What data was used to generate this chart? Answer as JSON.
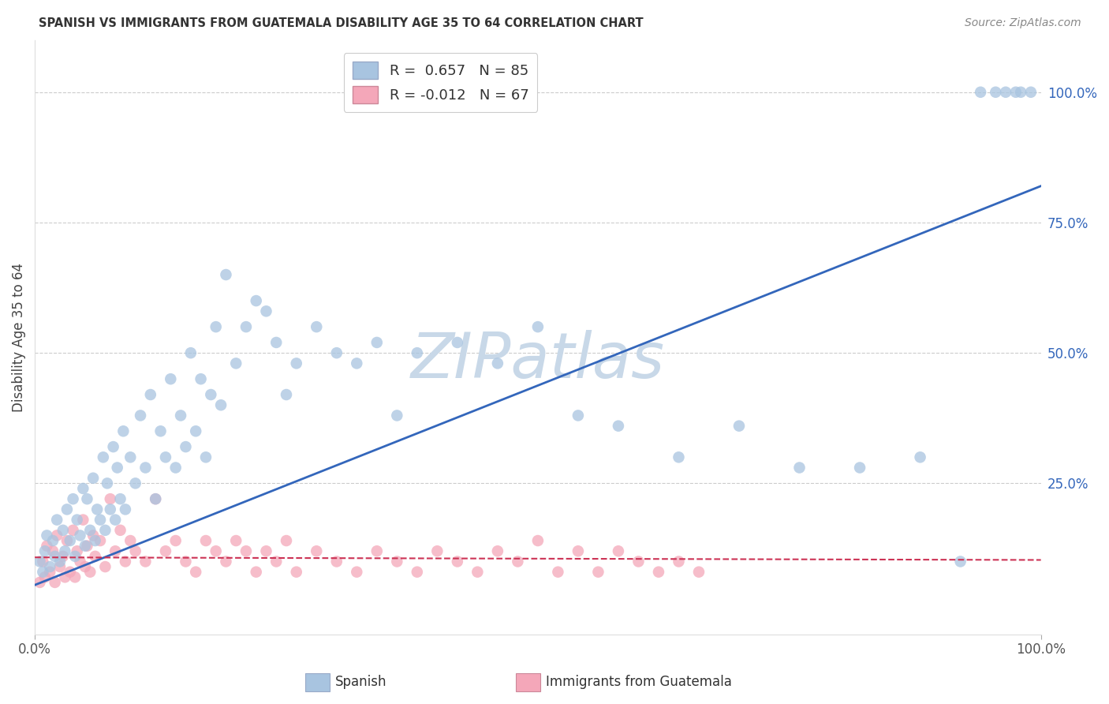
{
  "title": "SPANISH VS IMMIGRANTS FROM GUATEMALA DISABILITY AGE 35 TO 64 CORRELATION CHART",
  "source": "Source: ZipAtlas.com",
  "ylabel": "Disability Age 35 to 64",
  "xlim": [
    0,
    1.0
  ],
  "ylim": [
    -0.04,
    1.1
  ],
  "xtick_labels": [
    "0.0%",
    "100.0%"
  ],
  "ytick_labels": [
    "100.0%",
    "75.0%",
    "50.0%",
    "25.0%"
  ],
  "ytick_positions": [
    1.0,
    0.75,
    0.5,
    0.25
  ],
  "legend1_r": "0.657",
  "legend1_n": "85",
  "legend2_r": "-0.012",
  "legend2_n": "67",
  "blue_color": "#a8c4e0",
  "pink_color": "#f4a7b9",
  "line_blue": "#3366bb",
  "line_pink": "#cc3355",
  "watermark_color": "#c8d8e8",
  "blue_scatter_x": [
    0.005,
    0.008,
    0.01,
    0.012,
    0.015,
    0.018,
    0.02,
    0.022,
    0.025,
    0.028,
    0.03,
    0.032,
    0.035,
    0.038,
    0.04,
    0.042,
    0.045,
    0.048,
    0.05,
    0.052,
    0.055,
    0.058,
    0.06,
    0.062,
    0.065,
    0.068,
    0.07,
    0.072,
    0.075,
    0.078,
    0.08,
    0.082,
    0.085,
    0.088,
    0.09,
    0.095,
    0.1,
    0.105,
    0.11,
    0.115,
    0.12,
    0.125,
    0.13,
    0.135,
    0.14,
    0.145,
    0.15,
    0.155,
    0.16,
    0.165,
    0.17,
    0.175,
    0.18,
    0.185,
    0.19,
    0.2,
    0.21,
    0.22,
    0.23,
    0.24,
    0.25,
    0.26,
    0.28,
    0.3,
    0.32,
    0.34,
    0.36,
    0.38,
    0.42,
    0.46,
    0.5,
    0.54,
    0.58,
    0.64,
    0.7,
    0.76,
    0.82,
    0.88,
    0.92,
    0.94,
    0.955,
    0.965,
    0.975,
    0.98,
    0.99
  ],
  "blue_scatter_y": [
    0.1,
    0.08,
    0.12,
    0.15,
    0.09,
    0.14,
    0.11,
    0.18,
    0.1,
    0.16,
    0.12,
    0.2,
    0.14,
    0.22,
    0.11,
    0.18,
    0.15,
    0.24,
    0.13,
    0.22,
    0.16,
    0.26,
    0.14,
    0.2,
    0.18,
    0.3,
    0.16,
    0.25,
    0.2,
    0.32,
    0.18,
    0.28,
    0.22,
    0.35,
    0.2,
    0.3,
    0.25,
    0.38,
    0.28,
    0.42,
    0.22,
    0.35,
    0.3,
    0.45,
    0.28,
    0.38,
    0.32,
    0.5,
    0.35,
    0.45,
    0.3,
    0.42,
    0.55,
    0.4,
    0.65,
    0.48,
    0.55,
    0.6,
    0.58,
    0.52,
    0.42,
    0.48,
    0.55,
    0.5,
    0.48,
    0.52,
    0.38,
    0.5,
    0.52,
    0.48,
    0.55,
    0.38,
    0.36,
    0.3,
    0.36,
    0.28,
    0.28,
    0.3,
    0.1,
    1.0,
    1.0,
    1.0,
    1.0,
    1.0,
    1.0
  ],
  "pink_scatter_x": [
    0.005,
    0.008,
    0.01,
    0.012,
    0.015,
    0.018,
    0.02,
    0.022,
    0.025,
    0.028,
    0.03,
    0.032,
    0.035,
    0.038,
    0.04,
    0.042,
    0.045,
    0.048,
    0.05,
    0.052,
    0.055,
    0.058,
    0.06,
    0.065,
    0.07,
    0.075,
    0.08,
    0.085,
    0.09,
    0.095,
    0.1,
    0.11,
    0.12,
    0.13,
    0.14,
    0.15,
    0.16,
    0.17,
    0.18,
    0.19,
    0.2,
    0.21,
    0.22,
    0.23,
    0.24,
    0.25,
    0.26,
    0.28,
    0.3,
    0.32,
    0.34,
    0.36,
    0.38,
    0.4,
    0.42,
    0.44,
    0.46,
    0.48,
    0.5,
    0.52,
    0.54,
    0.56,
    0.58,
    0.6,
    0.62,
    0.64,
    0.66
  ],
  "pink_scatter_y": [
    0.06,
    0.1,
    0.07,
    0.13,
    0.08,
    0.12,
    0.06,
    0.15,
    0.09,
    0.11,
    0.07,
    0.14,
    0.08,
    0.16,
    0.07,
    0.12,
    0.1,
    0.18,
    0.09,
    0.13,
    0.08,
    0.15,
    0.11,
    0.14,
    0.09,
    0.22,
    0.12,
    0.16,
    0.1,
    0.14,
    0.12,
    0.1,
    0.22,
    0.12,
    0.14,
    0.1,
    0.08,
    0.14,
    0.12,
    0.1,
    0.14,
    0.12,
    0.08,
    0.12,
    0.1,
    0.14,
    0.08,
    0.12,
    0.1,
    0.08,
    0.12,
    0.1,
    0.08,
    0.12,
    0.1,
    0.08,
    0.12,
    0.1,
    0.14,
    0.08,
    0.12,
    0.08,
    0.12,
    0.1,
    0.08,
    0.1,
    0.08
  ],
  "blue_line_x": [
    0.0,
    1.0
  ],
  "blue_line_y": [
    0.055,
    0.82
  ],
  "pink_line_x": [
    0.0,
    1.0
  ],
  "pink_line_y": [
    0.108,
    0.103
  ]
}
